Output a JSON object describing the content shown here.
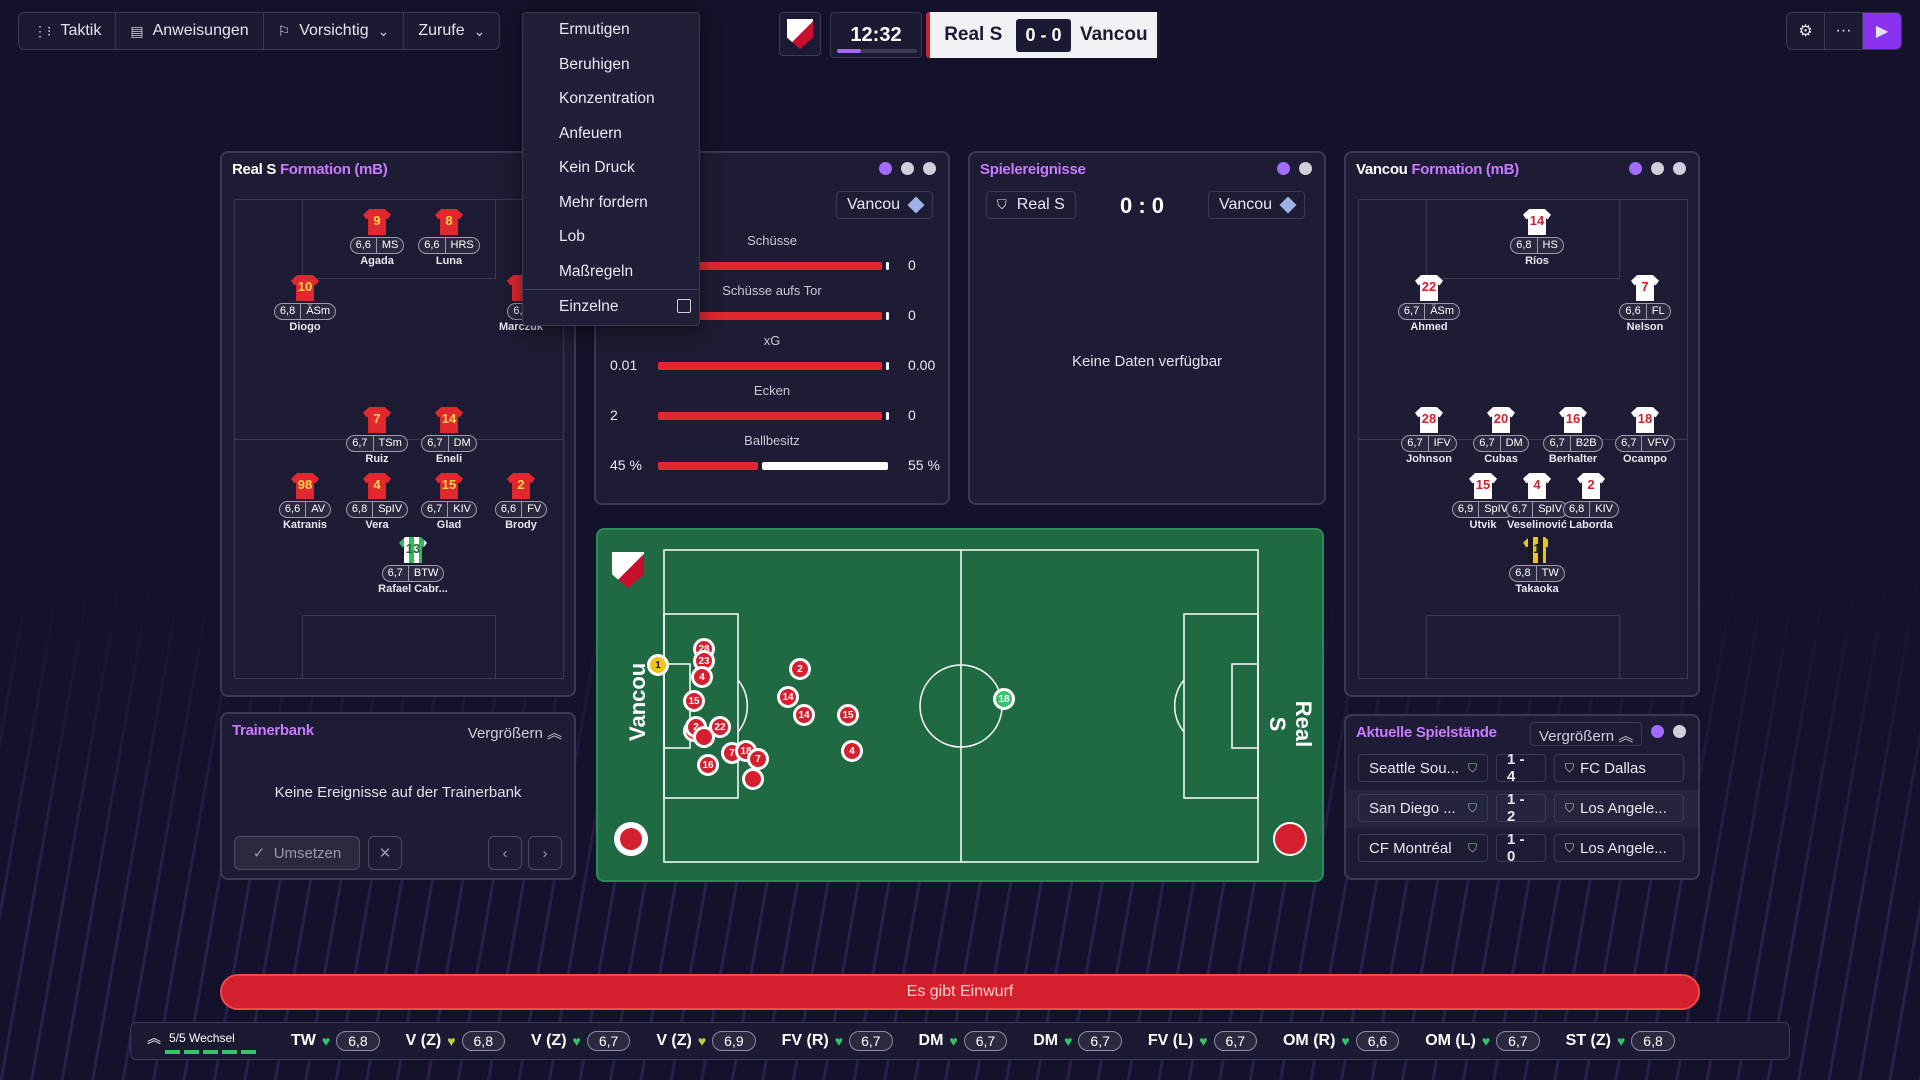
{
  "toolbar": {
    "tactic": "Taktik",
    "instructions": "Anweisungen",
    "mentality": "Vorsichtig",
    "shouts": "Zurufe"
  },
  "shouts_menu": [
    "Ermutigen",
    "Beruhigen",
    "Konzentration",
    "Anfeuern",
    "Kein Druck",
    "Mehr fordern",
    "Lob",
    "Maßregeln",
    "Einzelne"
  ],
  "match": {
    "clock": "12:32",
    "clock_progress": 0.3,
    "home": "Real S",
    "score": "0 - 0",
    "away": "Vancou"
  },
  "home_formation": {
    "team": "Real S",
    "title": "Formation (mB)",
    "players": [
      {
        "n": "9",
        "r": "6,6",
        "p": "MS",
        "name": "Agada"
      },
      {
        "n": "8",
        "r": "6,6",
        "p": "HRS",
        "name": "Luna"
      },
      {
        "n": "10",
        "r": "6,8",
        "p": "ÄSm",
        "name": "Diogo"
      },
      {
        "n": "",
        "r": "6,8",
        "p": "",
        "name": "Marczuk"
      },
      {
        "n": "7",
        "r": "6,7",
        "p": "TSm",
        "name": "Ruiz"
      },
      {
        "n": "14",
        "r": "6,7",
        "p": "DM",
        "name": "Eneli"
      },
      {
        "n": "98",
        "r": "6,6",
        "p": "AV",
        "name": "Katranis"
      },
      {
        "n": "4",
        "r": "6,8",
        "p": "SpIV",
        "name": "Vera"
      },
      {
        "n": "15",
        "r": "6,7",
        "p": "KIV",
        "name": "Glad"
      },
      {
        "n": "2",
        "r": "6,6",
        "p": "FV",
        "name": "Brody"
      },
      {
        "n": "13",
        "r": "6,7",
        "p": "BTW",
        "name": "Rafael Cabr..."
      }
    ]
  },
  "stats": {
    "team_select": "Vancou",
    "rows": [
      {
        "label": "Schüsse",
        "l": "",
        "r": "0"
      },
      {
        "label": "Schüsse aufs Tor",
        "l": "",
        "r": "0"
      },
      {
        "label": "xG",
        "l": "0.01",
        "r": "0.00"
      },
      {
        "label": "Ecken",
        "l": "2",
        "r": "0"
      },
      {
        "label": "Ballbesitz",
        "l": "45 %",
        "r": "55 %"
      }
    ],
    "possession": 0.45
  },
  "events": {
    "title": "Spielereignisse",
    "home": "Real S",
    "score": "0 : 0",
    "away": "Vancou",
    "empty": "Keine Daten verfügbar"
  },
  "away_formation": {
    "team": "Vancou",
    "title": "Formation (mB)",
    "players": [
      {
        "n": "14",
        "r": "6,8",
        "p": "HS",
        "name": "Ríos"
      },
      {
        "n": "22",
        "r": "6,7",
        "p": "ÄSm",
        "name": "Ahmed"
      },
      {
        "n": "7",
        "r": "6,6",
        "p": "FL",
        "name": "Nelson"
      },
      {
        "n": "28",
        "r": "6,7",
        "p": "IFV",
        "name": "Johnson"
      },
      {
        "n": "20",
        "r": "6,7",
        "p": "DM",
        "name": "Cubas"
      },
      {
        "n": "16",
        "r": "6,7",
        "p": "B2B",
        "name": "Berhalter"
      },
      {
        "n": "18",
        "r": "6,7",
        "p": "VFV",
        "name": "Ocampo"
      },
      {
        "n": "15",
        "r": "6,9",
        "p": "SpIV",
        "name": "Utvik"
      },
      {
        "n": "4",
        "r": "6,7",
        "p": "SpIV",
        "name": "Veselinović"
      },
      {
        "n": "2",
        "r": "6,8",
        "p": "KIV",
        "name": "Laborda"
      },
      {
        "n": "1",
        "r": "6,8",
        "p": "TW",
        "name": "Takaoka"
      }
    ]
  },
  "bench": {
    "title": "Trainerbank",
    "enlarge": "Vergrößern",
    "empty": "Keine Ereignisse auf der Trainerbank",
    "apply": "Umsetzen"
  },
  "pitch": {
    "left_label": "Vancou",
    "right_label": "Real S"
  },
  "scores": {
    "title": "Aktuelle Spielstände",
    "enlarge": "Vergrößern",
    "rows": [
      {
        "home": "Seattle Sou...",
        "score": "1 - 4",
        "away": "FC Dallas"
      },
      {
        "home": "San Diego ...",
        "score": "1 - 2",
        "away": "Los Angele..."
      },
      {
        "home": "CF Montréal",
        "score": "1 - 0",
        "away": "Los Angele..."
      }
    ]
  },
  "notice": "Es gibt Einwurf",
  "subs": {
    "label": "5/5 Wechsel",
    "slots": [
      {
        "pos": "TW",
        "v": "6,8",
        "h": "g"
      },
      {
        "pos": "V (Z)",
        "v": "6,8",
        "h": "y"
      },
      {
        "pos": "V (Z)",
        "v": "6,7",
        "h": "g"
      },
      {
        "pos": "V (Z)",
        "v": "6,9",
        "h": "y"
      },
      {
        "pos": "FV (R)",
        "v": "6,7",
        "h": "g"
      },
      {
        "pos": "DM",
        "v": "6,7",
        "h": "g"
      },
      {
        "pos": "DM",
        "v": "6,7",
        "h": "g"
      },
      {
        "pos": "FV (L)",
        "v": "6,7",
        "h": "g"
      },
      {
        "pos": "OM (R)",
        "v": "6,6",
        "h": "g"
      },
      {
        "pos": "OM (L)",
        "v": "6,7",
        "h": "g"
      },
      {
        "pos": "ST (Z)",
        "v": "6,8",
        "h": "g"
      }
    ]
  },
  "colors": {
    "accent": "#a367ff",
    "red": "#d4202e",
    "pitch": "#1f6a43"
  }
}
